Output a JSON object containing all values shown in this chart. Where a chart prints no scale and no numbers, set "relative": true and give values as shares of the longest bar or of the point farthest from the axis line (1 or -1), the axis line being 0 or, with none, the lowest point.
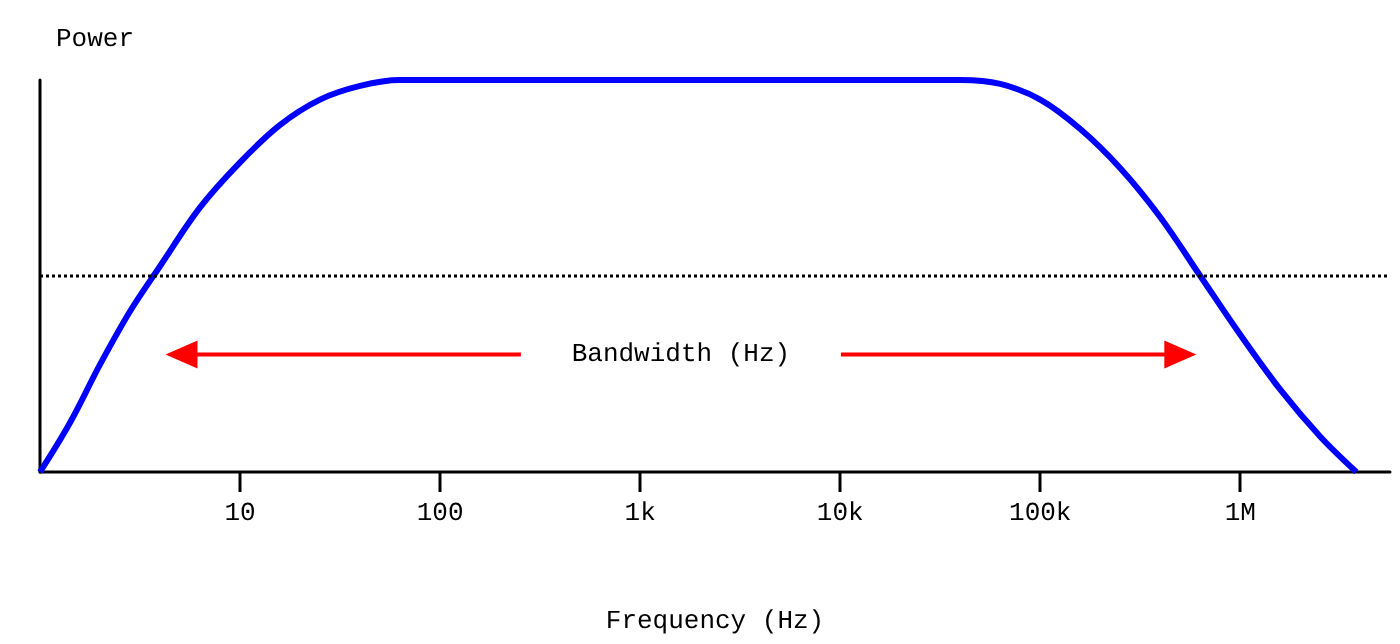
{
  "chart_data": {
    "type": "line",
    "relative": true,
    "xlabel": "Frequency (Hz)",
    "ylabel": "Power",
    "log": "x",
    "xlim": [
      1,
      5600000
    ],
    "xticks": [
      10,
      100,
      {
        "value": 1000,
        "label": "1k"
      },
      {
        "value": 10000,
        "label": "10k"
      },
      {
        "value": 100000,
        "label": "100k"
      },
      {
        "value": 1000000,
        "label": "1M"
      }
    ],
    "x": [
      1,
      1.41,
      2,
      2.82,
      3.98,
      6.31,
      10,
      15.8,
      25.1,
      39.8,
      63.1,
      39811,
      63096,
      100000,
      158489,
      251189,
      398107,
      630957,
      1000000,
      1584893,
      2511886,
      3801894
    ],
    "series": [
      {
        "color": "#0000ff",
        "values": [
          0,
          0.125,
          0.275,
          0.41,
          0.525,
          0.675,
          0.79,
          0.885,
          0.95,
          0.985,
          1,
          1,
          0.99,
          0.95,
          0.875,
          0.775,
          0.65,
          0.5,
          0.35,
          0.21,
          0.09,
          0
        ]
      }
    ],
    "ref_lines": [
      {
        "axis": "y",
        "value": 0.5,
        "line_style": "dotted",
        "color": "#000000"
      }
    ],
    "annotations": [
      "Bandwidth (Hz)"
    ],
    "grid": false,
    "marker": "none",
    "line_style": "solid"
  }
}
